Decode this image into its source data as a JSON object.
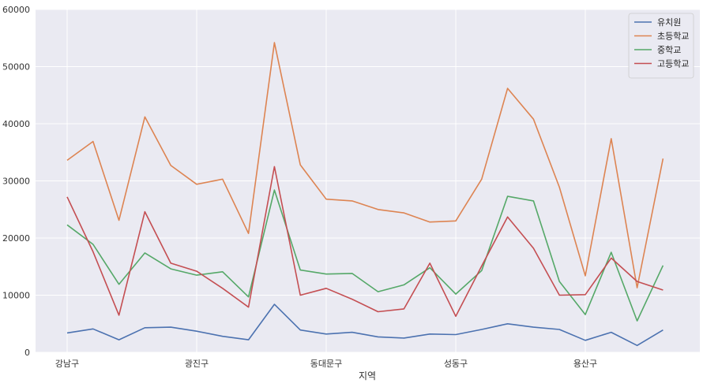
{
  "chart_data": {
    "type": "line",
    "title": "",
    "xlabel": "지역",
    "ylabel": "",
    "ylim": [
      0,
      60000
    ],
    "yticks": [
      0,
      10000,
      20000,
      30000,
      40000,
      50000,
      60000
    ],
    "xtick_labels": [
      {
        "index": 0,
        "label": "강남구"
      },
      {
        "index": 5,
        "label": "광진구"
      },
      {
        "index": 10,
        "label": "동대문구"
      },
      {
        "index": 15,
        "label": "성동구"
      },
      {
        "index": 20,
        "label": "용산구"
      }
    ],
    "point_count": 24,
    "grid": true,
    "legend_position": "top-right",
    "series": [
      {
        "name": "유치원",
        "color": "#4c72b0",
        "values": [
          3400,
          4100,
          2200,
          4300,
          4400,
          3700,
          2800,
          2200,
          8400,
          3900,
          3200,
          3500,
          2700,
          2500,
          3200,
          3100,
          4000,
          5000,
          4400,
          4000,
          2100,
          3500,
          1200,
          3900
        ]
      },
      {
        "name": "초등학교",
        "color": "#dd8452",
        "values": [
          33600,
          36900,
          23100,
          41200,
          32700,
          29400,
          30300,
          20800,
          54200,
          32800,
          26800,
          26500,
          25000,
          24400,
          22800,
          23000,
          30300,
          46200,
          40800,
          28900,
          13400,
          37400,
          11300,
          33900
        ]
      },
      {
        "name": "중학교",
        "color": "#55a868",
        "values": [
          22300,
          18900,
          11900,
          17400,
          14600,
          13500,
          14100,
          9700,
          28400,
          14400,
          13700,
          13800,
          10600,
          11800,
          14800,
          10200,
          14300,
          27300,
          26500,
          12400,
          6600,
          17500,
          5500,
          15200
        ]
      },
      {
        "name": "고등학교",
        "color": "#c44e52",
        "values": [
          27200,
          17600,
          6500,
          24600,
          15600,
          14200,
          11200,
          7900,
          32500,
          10000,
          11200,
          9300,
          7100,
          7600,
          15600,
          6300,
          15100,
          23700,
          18200,
          10000,
          10100,
          16500,
          12400,
          10900
        ]
      }
    ]
  }
}
